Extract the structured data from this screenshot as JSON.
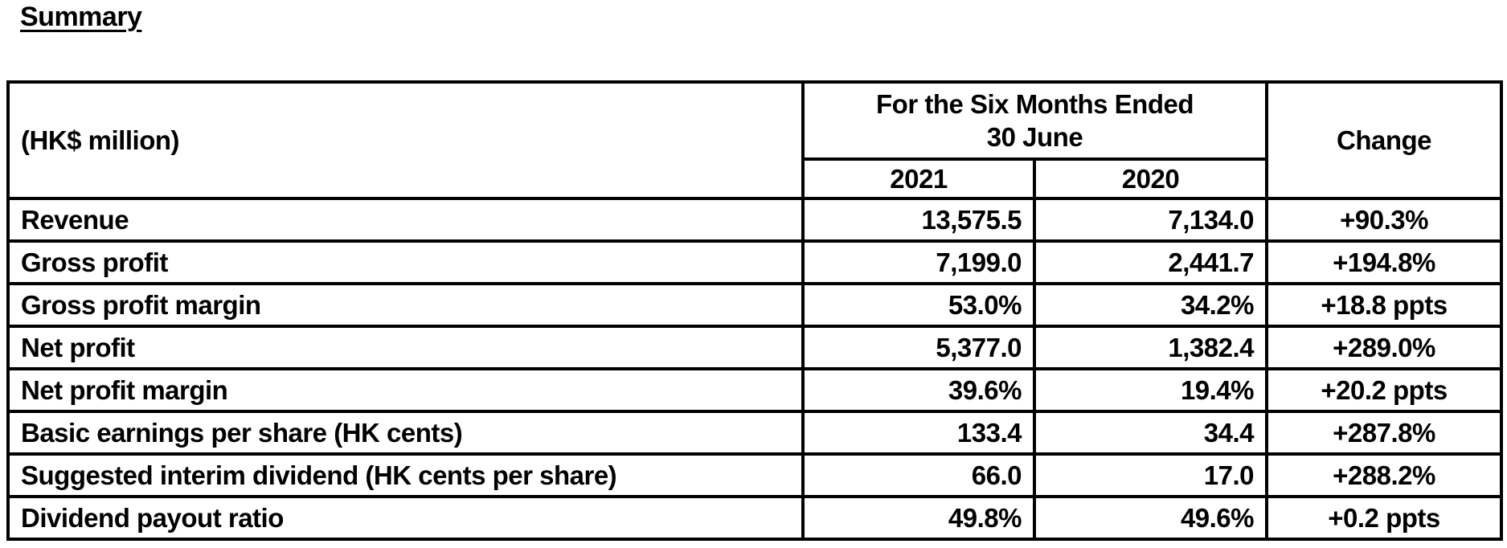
{
  "page_title": "Summary",
  "table": {
    "corner_label": "(HK$ million)",
    "period_header": "For the Six Months Ended\n30 June",
    "year_2021": "2021",
    "year_2020": "2020",
    "change_header": "Change",
    "rows": [
      {
        "label": "Revenue",
        "y2021": "13,575.5",
        "y2020": "7,134.0",
        "change": "+90.3%"
      },
      {
        "label": "Gross profit",
        "y2021": "7,199.0",
        "y2020": "2,441.7",
        "change": "+194.8%"
      },
      {
        "label": "Gross profit margin",
        "y2021": "53.0%",
        "y2020": "34.2%",
        "change": "+18.8 ppts"
      },
      {
        "label": "Net profit",
        "y2021": "5,377.0",
        "y2020": "1,382.4",
        "change": "+289.0%"
      },
      {
        "label": "Net profit margin",
        "y2021": "39.6%",
        "y2020": "19.4%",
        "change": "+20.2 ppts"
      },
      {
        "label": "Basic earnings per share (HK cents)",
        "y2021": "133.4",
        "y2020": "34.4",
        "change": "+287.8%"
      },
      {
        "label": "Suggested interim dividend (HK cents per share)",
        "y2021": "66.0",
        "y2020": "17.0",
        "change": "+288.2%"
      },
      {
        "label": "Dividend payout ratio",
        "y2021": "49.8%",
        "y2020": "49.6%",
        "change": "+0.2 ppts"
      }
    ]
  }
}
